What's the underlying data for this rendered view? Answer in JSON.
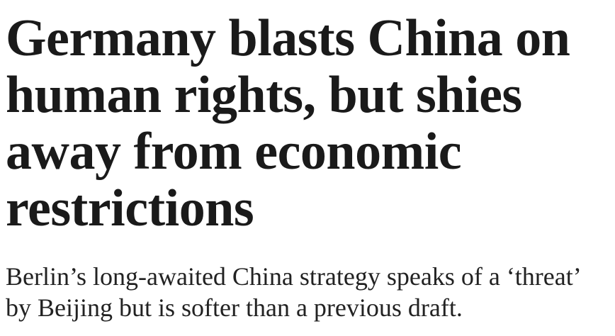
{
  "header": {
    "title": "Germany blasts China on human rights, but shies away from economic restrictions",
    "subtitle": "Berlin’s long-awaited China strategy speaks of a ‘threat’ by Beijing but is softer than a previous draft."
  }
}
